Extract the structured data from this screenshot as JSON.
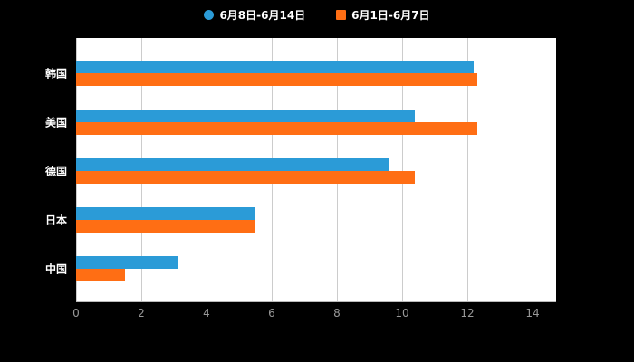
{
  "chart_data": {
    "type": "bar",
    "orientation": "horizontal",
    "title": "",
    "xlabel": "",
    "ylabel": "",
    "categories": [
      "韩国",
      "美国",
      "德国",
      "日本",
      "中国"
    ],
    "series": [
      {
        "name": "6月8日-6月14日",
        "marker": "circle",
        "color": "#2b9bd7",
        "values": [
          12.2,
          10.4,
          9.6,
          5.5,
          3.1
        ]
      },
      {
        "name": "6月1日-6月7日",
        "marker": "square",
        "color": "#ff6e14",
        "values": [
          12.3,
          12.3,
          10.4,
          5.5,
          1.5
        ]
      }
    ],
    "x_ticks": [
      0,
      2,
      4,
      6,
      8,
      10,
      12,
      14
    ],
    "xlim": [
      0,
      14.7
    ],
    "grid": true,
    "legend_position": "top",
    "colors": {
      "background": "#000000",
      "plot_background": "#ffffff",
      "grid_line": "#cccccc",
      "axis_line": "#bbbbbb",
      "tick_label": "#999999",
      "category_label": "#ffffff"
    }
  }
}
